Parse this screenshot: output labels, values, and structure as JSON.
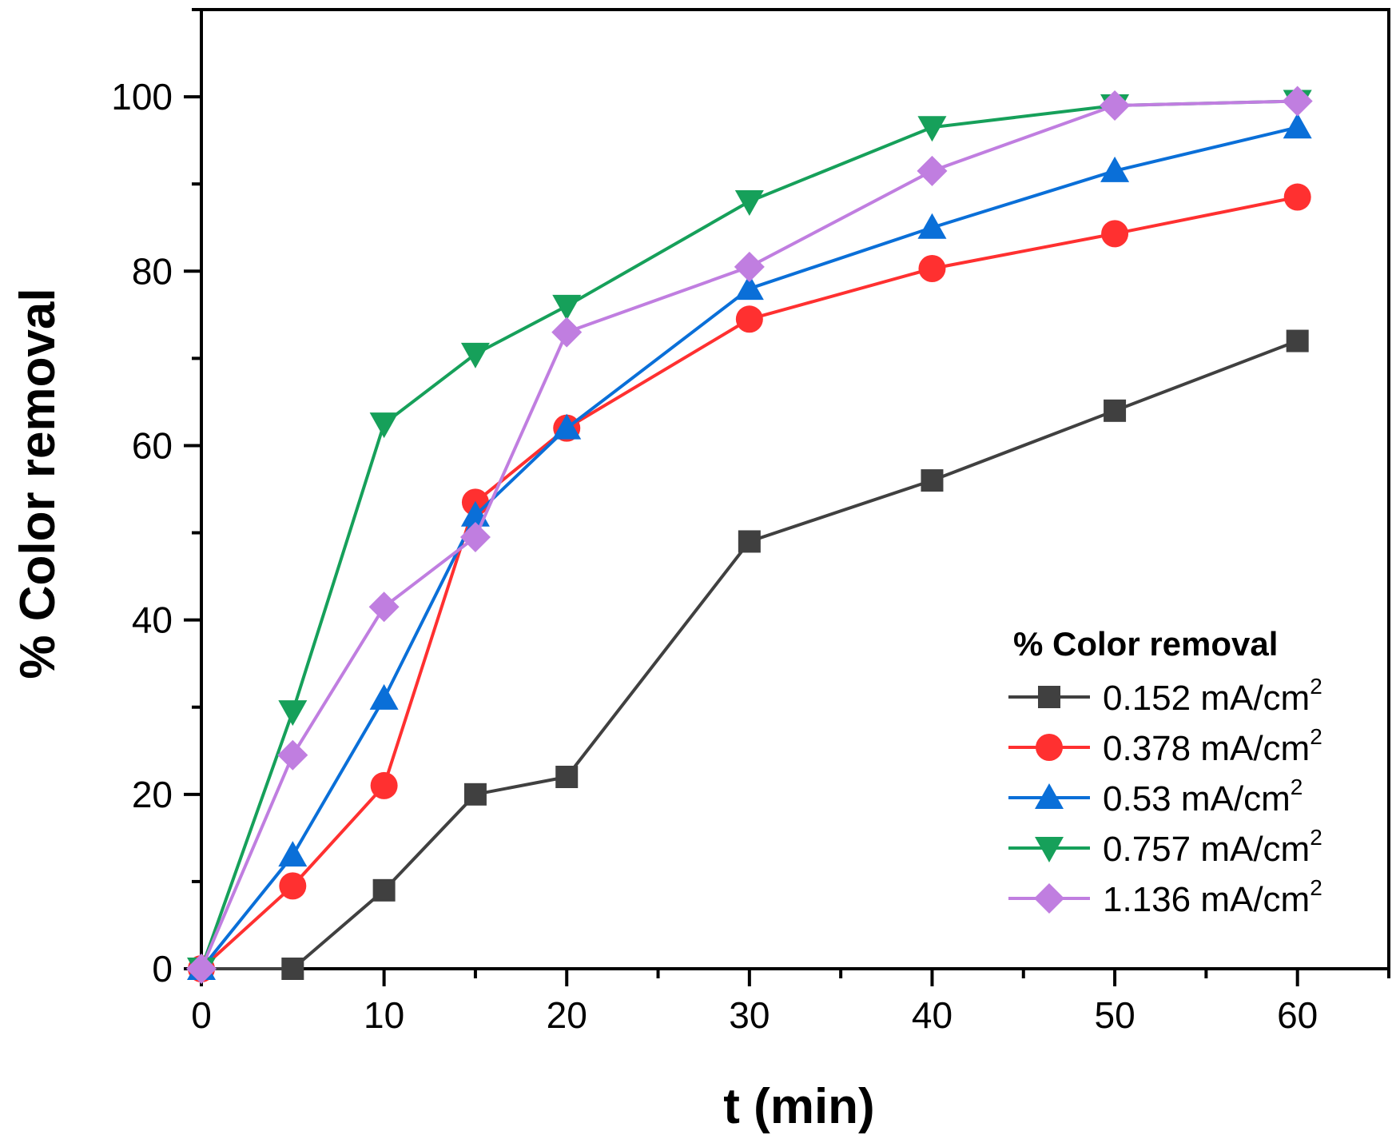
{
  "chart_data": {
    "type": "line",
    "xlabel": "t (min)",
    "ylabel": "% Color removal",
    "xlim": [
      0,
      65
    ],
    "ylim": [
      0,
      110
    ],
    "xticks": [
      0,
      10,
      20,
      30,
      40,
      50,
      60
    ],
    "yticks": [
      0,
      20,
      40,
      60,
      80,
      100
    ],
    "xtick_labels": [
      "0",
      "10",
      "20",
      "30",
      "40",
      "50",
      "60"
    ],
    "ytick_labels": [
      "0",
      "20",
      "40",
      "60",
      "80",
      "100"
    ],
    "x": [
      0,
      5,
      10,
      15,
      20,
      30,
      40,
      50,
      60
    ],
    "legend": {
      "title": "% Color removal",
      "position": "lower-right"
    },
    "series": [
      {
        "name": "0.152 mA/cm",
        "unit_superscript": "2",
        "color": "#404040",
        "marker": "square",
        "values": [
          0,
          0,
          9,
          20,
          22,
          49,
          56,
          64,
          72
        ]
      },
      {
        "name": "0.378 mA/cm",
        "unit_superscript": "2",
        "color": "#ff3030",
        "marker": "circle",
        "values": [
          0,
          9.5,
          21,
          53.5,
          62,
          74.5,
          80.3,
          84.3,
          88.5
        ]
      },
      {
        "name": "0.53 mA/cm",
        "unit_superscript": "2",
        "color": "#0a6fd8",
        "marker": "triangle-up",
        "values": [
          0,
          13,
          31,
          52,
          62,
          78,
          85,
          91.5,
          96.5
        ]
      },
      {
        "name": "0.757 mA/cm",
        "unit_superscript": "2",
        "color": "#16a05a",
        "marker": "triangle-down",
        "values": [
          0,
          29.5,
          62.5,
          70.5,
          76,
          88,
          96.5,
          99,
          99.5
        ]
      },
      {
        "name": "1.136 mA/cm",
        "unit_superscript": "2",
        "color": "#c07ee0",
        "marker": "diamond",
        "values": [
          0,
          24.5,
          41.5,
          49.5,
          73,
          80.5,
          91.5,
          99,
          99.5
        ]
      }
    ]
  }
}
